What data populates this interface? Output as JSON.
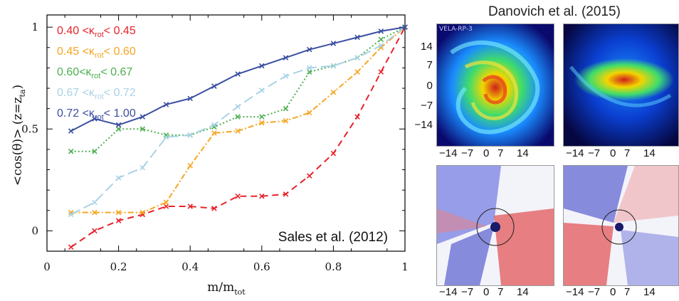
{
  "chart_data": {
    "type": "line",
    "xlabel_main": "m/m",
    "xlabel_sub": "tot",
    "ylabel": "<cos(θ)> (z=z",
    "ylabel_sub": "ta",
    "ylabel_end": ")",
    "xlim": [
      0,
      1
    ],
    "ylim": [
      -0.1,
      1.06
    ],
    "x_ticks": [
      0,
      0.2,
      0.4,
      0.6,
      0.8,
      1
    ],
    "x_tick_labels": [
      "0",
      "0.2",
      "0.4",
      "0.6",
      "0.8",
      "1"
    ],
    "y_ticks": [
      0,
      0.5,
      1
    ],
    "y_tick_labels": [
      "0",
      "0.5",
      "1"
    ],
    "annotation": "Sales et al. (2012)",
    "x": [
      0.067,
      0.133,
      0.2,
      0.267,
      0.333,
      0.4,
      0.467,
      0.533,
      0.6,
      0.667,
      0.733,
      0.8,
      0.867,
      0.933,
      1.0
    ],
    "series": [
      {
        "legend_pre": "0.40 <κ",
        "legend_sub": "rot",
        "legend_post": "< 0.45",
        "color": "#e8232a",
        "dash": "9,6",
        "values": [
          -0.08,
          0.0,
          0.05,
          0.08,
          0.12,
          0.12,
          0.11,
          0.17,
          0.17,
          0.18,
          0.27,
          0.38,
          0.56,
          0.78,
          1.0
        ]
      },
      {
        "legend_pre": "0.45 <κ",
        "legend_sub": "rot",
        "legend_post": "< 0.60",
        "color": "#f5a623",
        "dash": "8,3,2,3",
        "values": [
          0.09,
          0.09,
          0.09,
          0.09,
          0.14,
          0.32,
          0.48,
          0.49,
          0.53,
          0.54,
          0.58,
          0.68,
          0.78,
          0.9,
          1.0
        ]
      },
      {
        "legend_pre": "0.60<κ",
        "legend_sub": "rot",
        "legend_post": "< 0.67",
        "color": "#4caf50",
        "dash": "2,3",
        "values": [
          0.39,
          0.39,
          0.5,
          0.5,
          0.47,
          0.47,
          0.51,
          0.56,
          0.56,
          0.6,
          0.78,
          0.81,
          0.85,
          0.94,
          1.0
        ]
      },
      {
        "legend_pre": "0.67 <κ",
        "legend_sub": "rot",
        "legend_post": "< 0.72",
        "color": "#a9d3e6",
        "dash": "14,6",
        "values": [
          0.08,
          0.14,
          0.26,
          0.31,
          0.46,
          0.47,
          0.52,
          0.61,
          0.69,
          0.76,
          0.8,
          0.81,
          0.85,
          0.91,
          1.0
        ]
      },
      {
        "legend_pre": "0.72 <κ",
        "legend_sub": "rot",
        "legend_post": "< 1.00",
        "color": "#3a4fa0",
        "dash": "",
        "values": [
          0.49,
          0.55,
          0.52,
          0.56,
          0.62,
          0.65,
          0.71,
          0.77,
          0.81,
          0.85,
          0.89,
          0.92,
          0.95,
          0.98,
          1.0
        ]
      }
    ]
  },
  "right_figure": {
    "title": "Danovich et al. (2015)",
    "sim_label": "VELA-RP-3",
    "y_tick_labels": [
      "14",
      "7",
      "0",
      "−7",
      "−14"
    ],
    "x_tick_labels": [
      "−14",
      "−7",
      "0",
      "7",
      "14"
    ],
    "top_colormap": "density (blue-green-yellow-red)",
    "bottom_colormap": "velocity (blue-white-red)"
  }
}
